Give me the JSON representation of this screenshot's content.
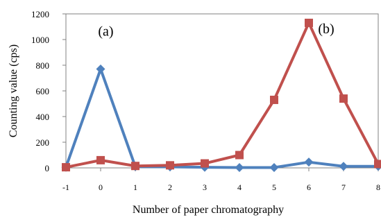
{
  "chart_data": {
    "type": "line",
    "title": "",
    "xlabel": "Number of paper chromatography",
    "ylabel": "Counting value  (cps)",
    "x": [
      -1,
      0,
      1,
      2,
      3,
      4,
      5,
      6,
      7,
      8
    ],
    "xlim": [
      -1,
      8
    ],
    "ylim": [
      0,
      1200
    ],
    "yticks": [
      0,
      200,
      400,
      600,
      800,
      1000,
      1200
    ],
    "xticks": [
      -1,
      0,
      1,
      2,
      3,
      4,
      5,
      6,
      7,
      8
    ],
    "grid": false,
    "legend": "none",
    "series": [
      {
        "values": [
          5,
          770,
          10,
          8,
          5,
          3,
          3,
          45,
          12,
          12
        ],
        "color": "#4f81bd",
        "marker": "diamond"
      },
      {
        "values": [
          5,
          60,
          15,
          20,
          35,
          100,
          530,
          1130,
          540,
          30
        ],
        "color": "#c0504d",
        "marker": "square"
      }
    ],
    "annotations": [
      {
        "text": "(a)",
        "x": 0.15,
        "y": 1030
      },
      {
        "text": "(b)",
        "x": 6.5,
        "y": 1050
      }
    ]
  }
}
